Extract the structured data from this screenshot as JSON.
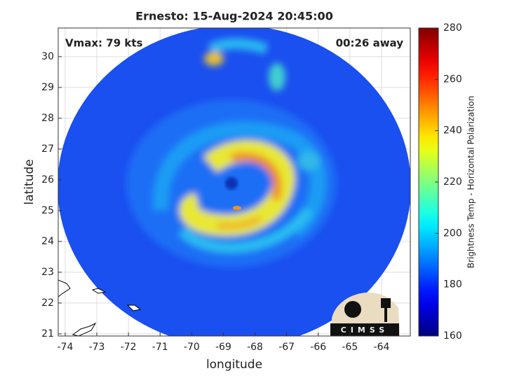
{
  "chart_data": {
    "type": "image",
    "title": "Ernesto: 15-Aug-2024 20:45:00",
    "x_label": "longitude",
    "y_label": "latitude",
    "annotations": [
      "Vmax: 79 kts",
      "00:26 away"
    ],
    "xlim": [
      -74.22,
      -63.09
    ],
    "ylim": [
      20.93,
      30.93
    ],
    "xticks": [
      -74,
      -73,
      -72,
      -71,
      -70,
      -69,
      -68,
      -67,
      -66,
      -65,
      -64
    ],
    "yticks": [
      21,
      22,
      23,
      24,
      25,
      26,
      27,
      28,
      29,
      30
    ],
    "grid": true,
    "colorbar": {
      "label": "Brightness Temp - Horizontal Polarization",
      "colormap": "jet",
      "clim": [
        160,
        280
      ],
      "ticks": [
        160,
        180,
        200,
        220,
        240,
        260,
        280
      ]
    },
    "logo_text": "CIMSS"
  }
}
